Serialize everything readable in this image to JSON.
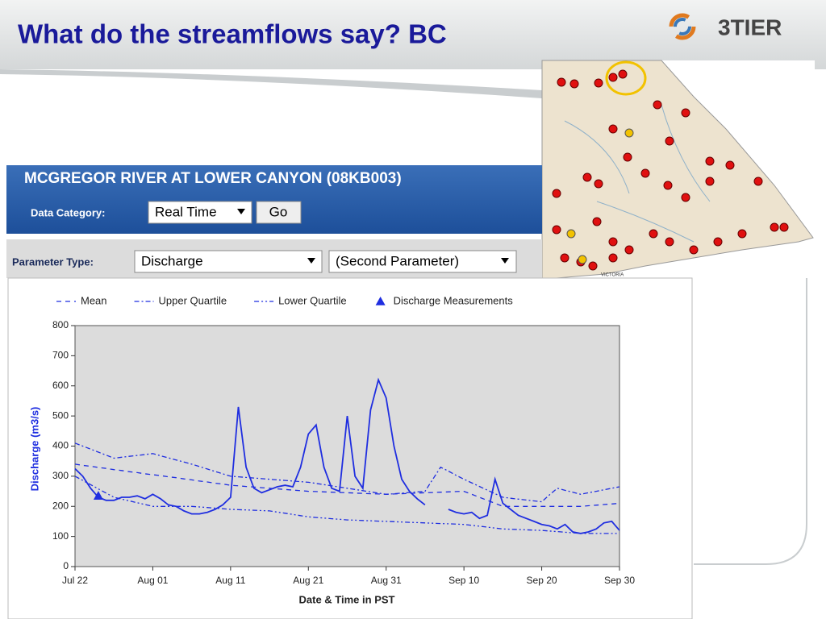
{
  "slide": {
    "title": "What do the streamflows say?  BC",
    "logo": "3TIER"
  },
  "panel": {
    "station": "MCGREGOR RIVER AT LOWER CANYON (08KB003)",
    "category_label": "Data Category:",
    "category_value": "Real Time",
    "go": "Go",
    "parameter_label": "Parameter Type:",
    "parameter_value": "Discharge",
    "second_parameter": "(Second Parameter)"
  },
  "map": {
    "city": "VICTORIA"
  },
  "chart_data": {
    "type": "line",
    "xlabel": "Date & Time in PST",
    "ylabel": "Discharge (m3/s)",
    "categories": [
      "Jul 22",
      null,
      null,
      null,
      null,
      null,
      null,
      null,
      null,
      null,
      "Aug 01",
      null,
      null,
      null,
      null,
      null,
      null,
      null,
      null,
      null,
      "Aug 11",
      null,
      null,
      null,
      null,
      null,
      null,
      null,
      null,
      null,
      "Aug 21",
      null,
      null,
      null,
      null,
      null,
      null,
      null,
      null,
      null,
      "Aug 31",
      null,
      null,
      null,
      null,
      null,
      null,
      null,
      null,
      null,
      "Sep 10",
      null,
      null,
      null,
      null,
      null,
      null,
      null,
      null,
      null,
      "Sep 20",
      null,
      null,
      null,
      null,
      null,
      null,
      null,
      null,
      null,
      "Sep 30"
    ],
    "ylim": [
      0,
      800
    ],
    "yticks": [
      0,
      100,
      200,
      300,
      400,
      500,
      600,
      700,
      800
    ],
    "grid": false,
    "series": [
      {
        "color": "#1f2ee0",
        "style": "solid",
        "values": [
          325,
          300,
          260,
          230,
          220,
          220,
          230,
          230,
          235,
          225,
          240,
          225,
          205,
          200,
          185,
          175,
          175,
          180,
          190,
          205,
          230,
          530,
          330,
          260,
          245,
          255,
          265,
          270,
          265,
          330,
          440,
          470,
          330,
          260,
          250,
          500,
          300,
          260,
          520,
          620,
          560,
          400,
          290,
          250,
          225,
          205,
          null,
          null,
          190,
          180,
          175,
          180,
          160,
          170,
          290,
          210,
          190,
          170,
          160,
          150,
          140,
          135,
          125,
          140,
          115,
          110,
          115,
          125,
          145,
          150,
          120
        ]
      },
      {
        "name": "Mean",
        "color": "#1f2ee0",
        "style": "dash",
        "values": [
          340,
          336,
          333,
          329,
          326,
          322,
          319,
          315,
          312,
          308,
          305,
          302,
          298,
          295,
          291,
          288,
          284,
          281,
          277,
          274,
          270,
          268,
          266,
          264,
          262,
          260,
          258,
          256,
          254,
          252,
          250,
          249,
          248,
          247,
          246,
          245,
          244,
          243,
          242,
          241,
          240,
          241,
          242,
          243,
          244,
          245,
          246,
          247,
          248,
          249,
          250,
          240,
          230,
          220,
          210,
          200,
          200,
          200,
          200,
          200,
          200,
          200,
          200,
          200,
          200,
          200,
          202,
          204,
          206,
          208,
          210
        ]
      },
      {
        "name": "Upper Quartile",
        "color": "#1f2ee0",
        "style": "dashdot",
        "values": [
          410,
          400,
          390,
          380,
          370,
          360,
          363,
          366,
          369,
          372,
          375,
          368,
          361,
          354,
          347,
          340,
          332,
          324,
          316,
          308,
          300,
          298,
          296,
          294,
          292,
          290,
          288,
          286,
          284,
          282,
          280,
          276,
          272,
          268,
          264,
          260,
          256,
          252,
          248,
          244,
          240,
          242,
          244,
          246,
          248,
          250,
          290,
          330,
          317,
          303,
          290,
          278,
          266,
          254,
          242,
          230,
          227,
          224,
          221,
          218,
          215,
          238,
          260,
          253,
          247,
          240,
          245,
          250,
          255,
          260,
          265
        ]
      },
      {
        "name": "Lower Quartile",
        "color": "#1f2ee0",
        "style": "dashdotdot",
        "values": [
          300,
          286,
          272,
          258,
          244,
          230,
          224,
          218,
          212,
          206,
          200,
          200,
          200,
          200,
          200,
          200,
          198,
          196,
          194,
          192,
          190,
          189,
          188,
          187,
          186,
          185,
          181,
          177,
          173,
          169,
          165,
          163,
          161,
          159,
          157,
          155,
          154,
          153,
          152,
          151,
          150,
          149,
          148,
          147,
          146,
          145,
          144,
          143,
          142,
          141,
          140,
          137,
          134,
          131,
          128,
          125,
          124,
          123,
          122,
          121,
          120,
          118,
          116,
          114,
          112,
          110,
          110,
          110,
          110,
          110,
          110
        ]
      },
      {
        "name": "Discharge Measurements",
        "color": "#1f2ee0",
        "style": "triangle",
        "values": [
          null,
          null,
          null,
          235,
          null,
          null,
          null,
          null,
          null,
          null,
          null,
          null,
          null,
          null,
          null,
          null,
          null,
          null,
          null,
          null,
          null,
          null,
          null,
          null,
          null,
          null,
          null,
          null,
          null,
          null,
          null,
          null,
          null,
          null,
          null,
          null,
          null,
          null,
          null,
          null,
          null,
          null,
          null,
          null,
          null,
          null,
          null,
          null,
          null,
          null,
          null,
          null,
          null,
          null,
          null,
          null,
          null,
          null,
          null,
          null,
          null,
          null,
          null,
          null,
          null,
          null,
          null,
          null,
          null,
          null,
          null
        ]
      }
    ]
  }
}
